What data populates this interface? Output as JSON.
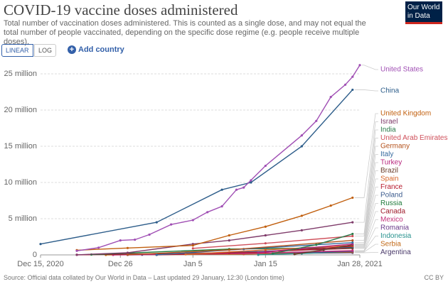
{
  "chart_data": {
    "type": "line",
    "title": "COVID-19 vaccine doses administered",
    "subtitle": "Total number of vaccination doses administered. This is counted as a single dose, and may not equal the total number of people vaccinated, depending on the specific dose regime (e.g. people receive multiple doses).",
    "logo": "Our World in Data",
    "buttons": [
      "LINEAR",
      "LOG"
    ],
    "add_country": "Add country",
    "source": "Source: Official data collated by Our World in Data – Last updated 29 January, 12:30 (London time)",
    "license": "CC BY",
    "grid": true,
    "xlim": [
      "2020-12-15",
      "2021-01-28"
    ],
    "xticks": [
      {
        "value": "2020-12-15",
        "label": "Dec 15, 2020"
      },
      {
        "value": "2020-12-26",
        "label": "Dec 26"
      },
      {
        "value": "2021-01-05",
        "label": "Jan 5"
      },
      {
        "value": "2021-01-15",
        "label": "Jan 15"
      },
      {
        "value": "2021-01-28",
        "label": "Jan 28, 2021"
      }
    ],
    "ylim": [
      0,
      25000000
    ],
    "yticks": [
      0,
      {
        "value": 5000000,
        "label": "5 million"
      },
      {
        "value": 10000000,
        "label": "10 million"
      },
      {
        "value": 15000000,
        "label": "15 million"
      },
      {
        "value": 20000000,
        "label": "20 million"
      },
      {
        "value": 25000000,
        "label": "25 million"
      }
    ],
    "series": [
      {
        "name": "United States",
        "color": "#a04fb4",
        "x": [
          "2020-12-20",
          "2020-12-23",
          "2020-12-26",
          "2020-12-28",
          "2020-12-30",
          "2021-01-02",
          "2021-01-05",
          "2021-01-07",
          "2021-01-09",
          "2021-01-11",
          "2021-01-12",
          "2021-01-13",
          "2021-01-15",
          "2021-01-20",
          "2021-01-22",
          "2021-01-24",
          "2021-01-26",
          "2021-01-27",
          "2021-01-28"
        ],
        "values": [
          560000,
          1000000,
          2000000,
          2100000,
          2800000,
          4200000,
          4800000,
          5900000,
          6700000,
          9000000,
          9300000,
          10300000,
          12300000,
          16500000,
          18500000,
          21800000,
          23500000,
          24600000,
          26200000
        ]
      },
      {
        "name": "China",
        "color": "#2d5d8a",
        "x": [
          "2020-12-15",
          "2020-12-31",
          "2021-01-09",
          "2021-01-13",
          "2021-01-20",
          "2021-01-27"
        ],
        "values": [
          1500000,
          4500000,
          9000000,
          10000000,
          15000000,
          22800000
        ]
      },
      {
        "name": "United Kingdom",
        "color": "#c15f0e",
        "x": [
          "2020-12-20",
          "2020-12-27",
          "2021-01-05",
          "2021-01-10",
          "2021-01-15",
          "2021-01-20",
          "2021-01-24",
          "2021-01-27"
        ],
        "values": [
          650000,
          950000,
          1300000,
          2700000,
          3900000,
          5400000,
          6800000,
          7900000
        ]
      },
      {
        "name": "Israel",
        "color": "#7f3b6a",
        "x": [
          "2020-12-20",
          "2020-12-27",
          "2021-01-05",
          "2021-01-10",
          "2021-01-15",
          "2021-01-20",
          "2021-01-27"
        ],
        "values": [
          10000,
          300000,
          1500000,
          2000000,
          2700000,
          3400000,
          4500000
        ]
      },
      {
        "name": "India",
        "color": "#2b7a4a",
        "x": [
          "2021-01-16",
          "2021-01-22",
          "2021-01-27"
        ],
        "values": [
          190000,
          1400000,
          2900000
        ]
      },
      {
        "name": "United Arab Emirates",
        "color": "#cf4f5a",
        "x": [
          "2021-01-05",
          "2021-01-15",
          "2021-01-27"
        ],
        "values": [
          900000,
          1600000,
          2600000
        ]
      },
      {
        "name": "Germany",
        "color": "#b4521c",
        "x": [
          "2020-12-27",
          "2021-01-10",
          "2021-01-27"
        ],
        "values": [
          20000,
          700000,
          2000000
        ]
      },
      {
        "name": "Italy",
        "color": "#356a9e",
        "x": [
          "2020-12-31",
          "2021-01-12",
          "2021-01-27"
        ],
        "values": [
          10000,
          800000,
          1700000
        ]
      },
      {
        "name": "Turkey",
        "color": "#b6247b",
        "x": [
          "2021-01-14",
          "2021-01-20",
          "2021-01-27"
        ],
        "values": [
          300000,
          900000,
          1500000
        ]
      },
      {
        "name": "Brazil",
        "color": "#6a3d2b",
        "x": [
          "2021-01-19",
          "2021-01-23",
          "2021-01-27"
        ],
        "values": [
          100000,
          700000,
          1400000
        ]
      },
      {
        "name": "Spain",
        "color": "#d8662b",
        "x": [
          "2021-01-04",
          "2021-01-15",
          "2021-01-27"
        ],
        "values": [
          80000,
          700000,
          1300000
        ]
      },
      {
        "name": "France",
        "color": "#b6192c",
        "x": [
          "2020-12-31",
          "2021-01-15",
          "2021-01-27"
        ],
        "values": [
          300,
          400000,
          1200000
        ]
      },
      {
        "name": "Poland",
        "color": "#3a5a8c",
        "x": [
          "2020-12-31",
          "2021-01-15",
          "2021-01-27"
        ],
        "values": [
          10000,
          500000,
          1100000
        ]
      },
      {
        "name": "Russia",
        "color": "#1f7a3a",
        "x": [
          "2020-12-22",
          "2021-01-10",
          "2021-01-27"
        ],
        "values": [
          50000,
          800000,
          1000000
        ]
      },
      {
        "name": "Canada",
        "color": "#9e1a2a",
        "x": [
          "2020-12-20",
          "2021-01-10",
          "2021-01-27"
        ],
        "values": [
          10000,
          300000,
          900000
        ]
      },
      {
        "name": "Mexico",
        "color": "#c2317a",
        "x": [
          "2020-12-25",
          "2021-01-12",
          "2021-01-27"
        ],
        "values": [
          3000,
          200000,
          600000
        ]
      },
      {
        "name": "Romania",
        "color": "#6b3a8a",
        "x": [
          "2020-12-27",
          "2021-01-12",
          "2021-01-27"
        ],
        "values": [
          1000,
          200000,
          500000
        ]
      },
      {
        "name": "Indonesia",
        "color": "#28928e",
        "x": [
          "2021-01-14",
          "2021-01-20",
          "2021-01-27"
        ],
        "values": [
          10000,
          200000,
          500000
        ]
      },
      {
        "name": "Serbia",
        "color": "#c26a18",
        "x": [
          "2020-12-24",
          "2021-01-12",
          "2021-01-27"
        ],
        "values": [
          1000,
          100000,
          400000
        ]
      },
      {
        "name": "Argentina",
        "color": "#4a3a6a",
        "x": [
          "2020-12-29",
          "2021-01-12",
          "2021-01-27"
        ],
        "values": [
          30000,
          150000,
          300000
        ]
      }
    ]
  }
}
